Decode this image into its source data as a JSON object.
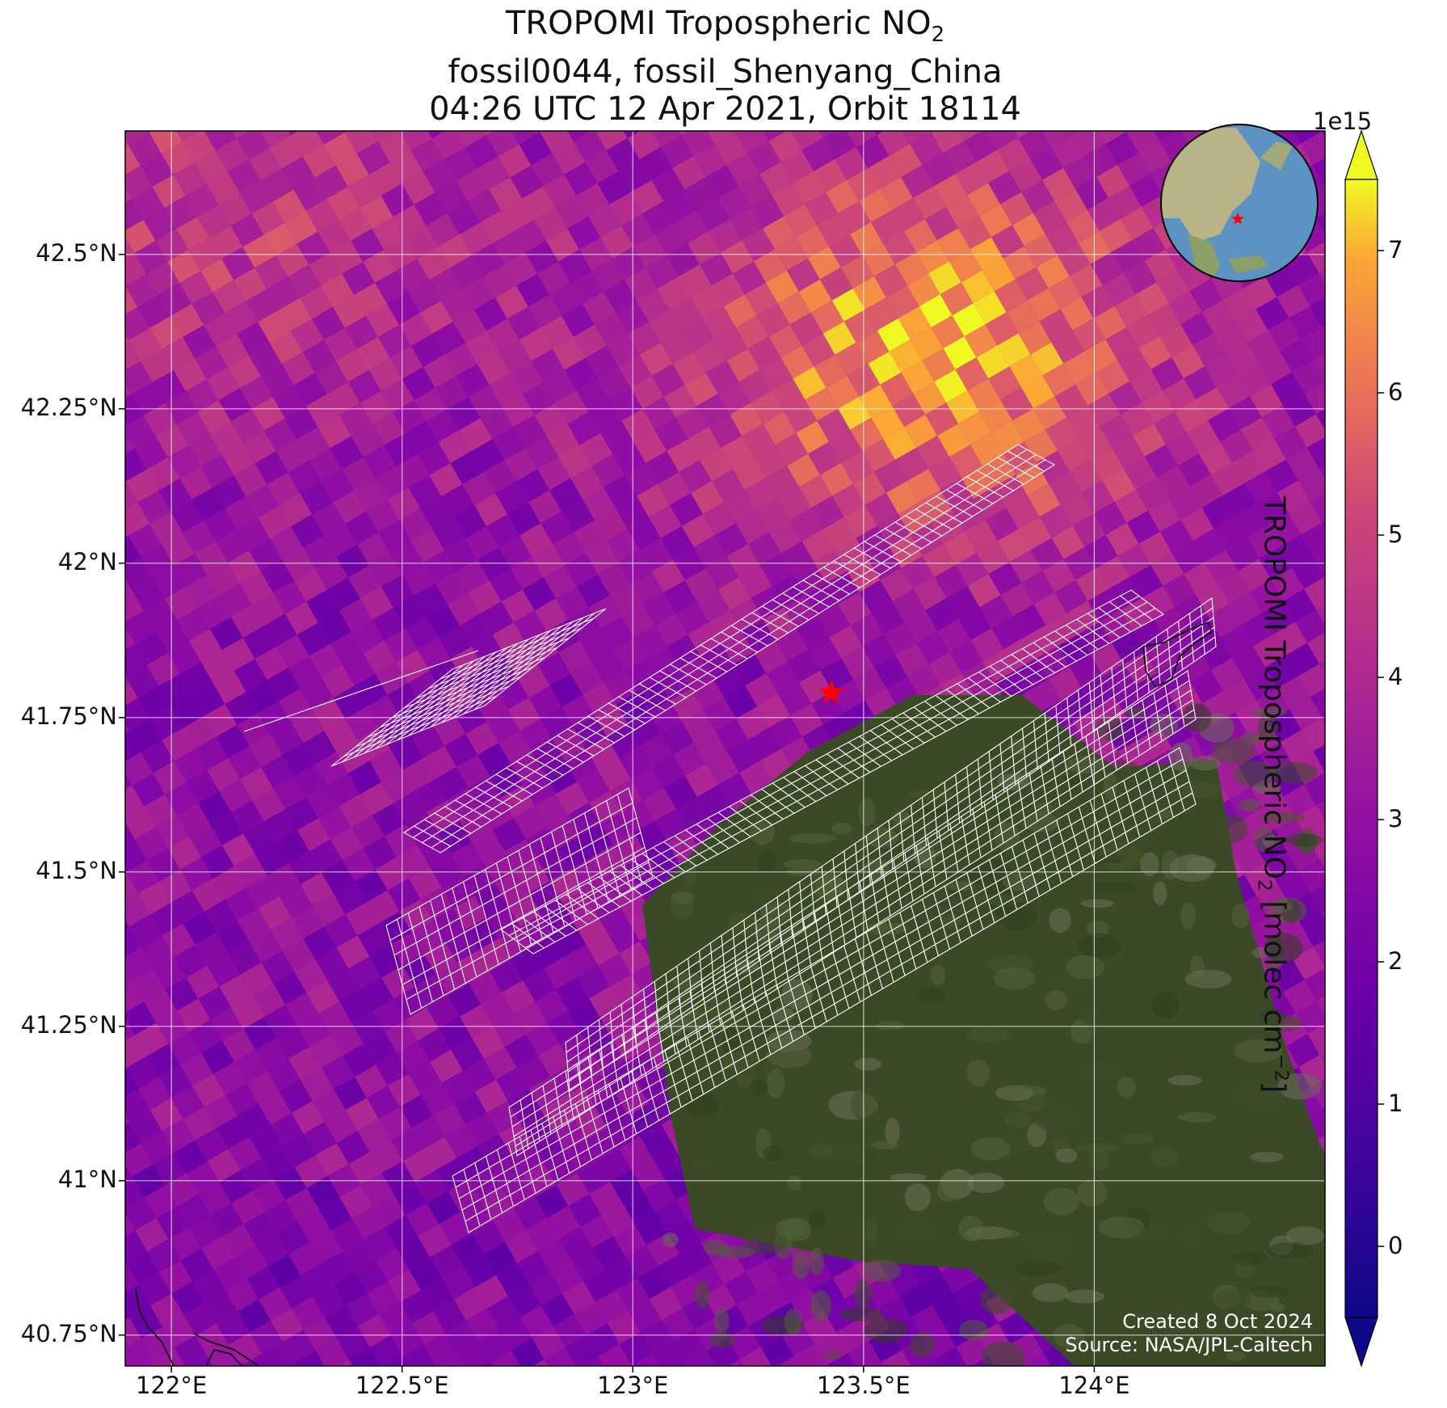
{
  "title": {
    "line1_prefix": "TROPOMI Tropospheric NO",
    "line1_sub": "2",
    "line2": "fossil0044, fossil_Shenyang_China",
    "line3": "04:26 UTC 12 Apr 2021, Orbit 18114"
  },
  "map": {
    "lon_range": [
      121.9,
      124.5
    ],
    "lat_range": [
      40.7,
      42.7
    ],
    "lon_ticks": [
      "122°E",
      "122.5°E",
      "123°E",
      "123.5°E",
      "124°E"
    ],
    "lon_values": [
      122.0,
      122.5,
      123.0,
      123.5,
      124.0
    ],
    "lat_ticks": [
      "42.5°N",
      "42.25°N",
      "42°N",
      "41.75°N",
      "41.5°N",
      "41.25°N",
      "41°N",
      "40.75°N"
    ],
    "lat_values": [
      42.5,
      42.25,
      42.0,
      41.75,
      41.5,
      41.25,
      41.0,
      40.75
    ],
    "target": {
      "name": "fossil_Shenyang_China",
      "lon": 123.43,
      "lat": 41.79,
      "marker": "red-star-icon"
    },
    "basemap": "satellite imagery",
    "gridlines": true
  },
  "colorbar": {
    "colormap": "plasma",
    "range": [
      -0.5,
      7.5
    ],
    "ticks": [
      "0",
      "1",
      "2",
      "3",
      "4",
      "5",
      "6",
      "7"
    ],
    "tick_values": [
      0,
      1,
      2,
      3,
      4,
      5,
      6,
      7
    ],
    "exponent": "1e15",
    "label_prefix": "TROPOMI Tropospheric NO",
    "label_sub": "2",
    "label_mid": " [molec cm",
    "label_sup": "−2",
    "label_suffix": "]",
    "extend": "both"
  },
  "inset": {
    "type": "globe",
    "marker": "red-star-icon"
  },
  "credit": {
    "line1": "Created 8 Oct 2024",
    "line2": "Source: NASA/JPL-Caltech"
  },
  "colors": {
    "target_marker": "#ff0000",
    "grid": "#ffffff",
    "footprint_outline": "#ffffff"
  }
}
